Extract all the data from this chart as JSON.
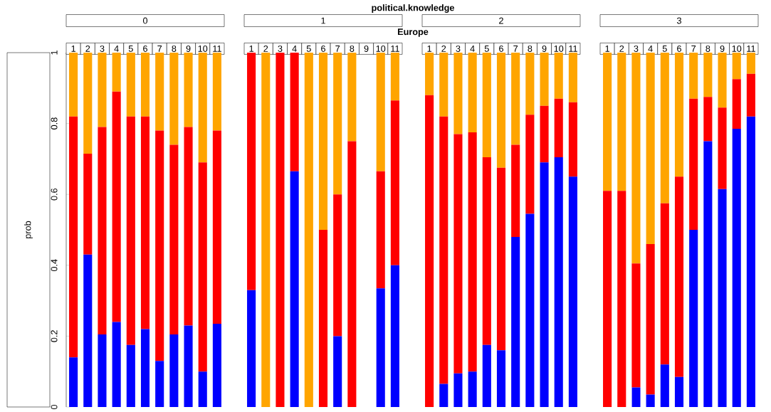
{
  "chart_data": [
    {
      "type": "bar",
      "stacked": true,
      "title": "0",
      "ylabel": "prob",
      "annotations": [
        "political.knowledge",
        "Europe"
      ],
      "categories": [
        "1",
        "2",
        "3",
        "4",
        "5",
        "6",
        "7",
        "8",
        "9",
        "10",
        "11"
      ],
      "ylim": [
        0,
        1
      ],
      "yticks": [
        0,
        0.2,
        0.4,
        0.6,
        0.8,
        1
      ],
      "series": [
        {
          "color": "#0000ff",
          "values": [
            0.14,
            0.43,
            0.205,
            0.24,
            0.175,
            0.22,
            0.13,
            0.205,
            0.23,
            0.1,
            0.235
          ]
        },
        {
          "color": "#ff0000",
          "values": [
            0.68,
            0.285,
            0.585,
            0.65,
            0.645,
            0.6,
            0.65,
            0.535,
            0.56,
            0.59,
            0.545
          ]
        },
        {
          "color": "#ffa500",
          "values": [
            0.18,
            0.285,
            0.21,
            0.11,
            0.18,
            0.18,
            0.22,
            0.26,
            0.21,
            0.31,
            0.22
          ]
        }
      ]
    },
    {
      "type": "bar",
      "stacked": true,
      "title": "1",
      "tick_labels": "x",
      "categories": [
        "1",
        "2",
        "3",
        "4",
        "5",
        "6",
        "7",
        "8",
        "9",
        "10",
        "11"
      ],
      "ylim": [
        0,
        1
      ],
      "series": [
        {
          "color": "#0000ff",
          "values": [
            0.33,
            0,
            0,
            0.665,
            0,
            0,
            0.2,
            0,
            null,
            0.335,
            0.4
          ]
        },
        {
          "color": "#ff0000",
          "values": [
            0.67,
            0,
            1,
            0.335,
            0,
            0.5,
            0.4,
            0.75,
            null,
            0.33,
            0.465
          ]
        },
        {
          "color": "#ffa500",
          "values": [
            0,
            1,
            0,
            0,
            1,
            0.5,
            0.4,
            0.25,
            null,
            0.335,
            0.135
          ]
        }
      ]
    },
    {
      "type": "bar",
      "stacked": true,
      "title": "2",
      "tick_labels": "x",
      "categories": [
        "1",
        "2",
        "3",
        "4",
        "5",
        "6",
        "7",
        "8",
        "9",
        "10",
        "11"
      ],
      "ylim": [
        0,
        1
      ],
      "series": [
        {
          "color": "#0000ff",
          "values": [
            0,
            0.065,
            0.095,
            0.1,
            0.175,
            0.16,
            0.48,
            0.545,
            0.69,
            0.705,
            0.65
          ]
        },
        {
          "color": "#ff0000",
          "values": [
            0.88,
            0.755,
            0.675,
            0.675,
            0.53,
            0.515,
            0.26,
            0.28,
            0.16,
            0.165,
            0.21
          ]
        },
        {
          "color": "#ffa500",
          "values": [
            0.12,
            0.18,
            0.23,
            0.225,
            0.295,
            0.325,
            0.26,
            0.175,
            0.15,
            0.13,
            0.14
          ]
        }
      ]
    },
    {
      "type": "bar",
      "stacked": true,
      "title": "3",
      "tick_labels": "x",
      "categories": [
        "1",
        "2",
        "3",
        "4",
        "5",
        "6",
        "7",
        "8",
        "9",
        "10",
        "11"
      ],
      "ylim": [
        0,
        1
      ],
      "series": [
        {
          "color": "#0000ff",
          "values": [
            0,
            0,
            0.055,
            0.035,
            0.12,
            0.085,
            0.5,
            0.75,
            0.615,
            0.785,
            0.82
          ]
        },
        {
          "color": "#ff0000",
          "values": [
            0.61,
            0.61,
            0.35,
            0.425,
            0.455,
            0.565,
            0.37,
            0.125,
            0.23,
            0.14,
            0.12
          ]
        },
        {
          "color": "#ffa500",
          "values": [
            0.39,
            0.39,
            0.595,
            0.54,
            0.425,
            0.35,
            0.13,
            0.125,
            0.155,
            0.075,
            0.06
          ]
        }
      ]
    }
  ]
}
